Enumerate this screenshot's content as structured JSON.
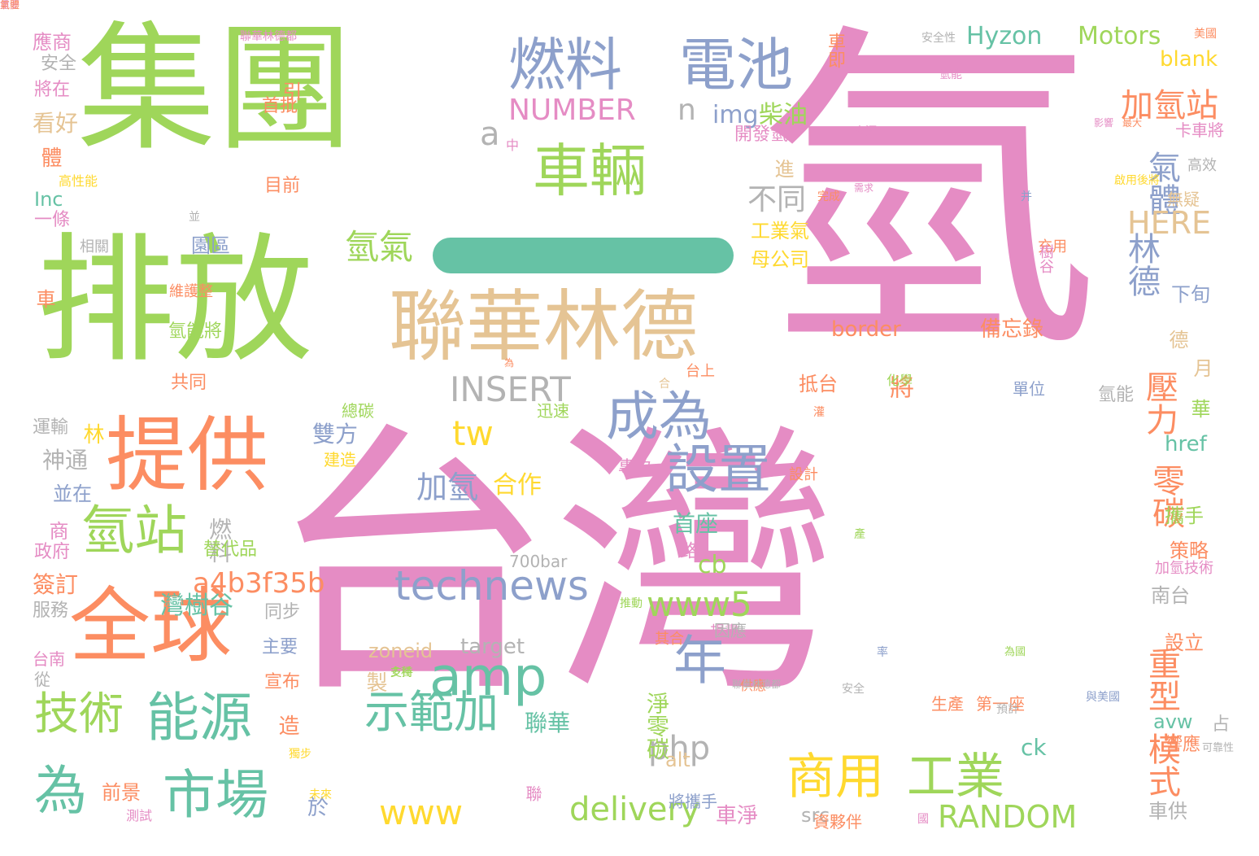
{
  "palette": {
    "green": "#9fd65a",
    "pink": "#e58cc4",
    "orange": "#fc8d62",
    "tan": "#e5c494",
    "blue": "#8da0cb",
    "teal": "#66c2a5",
    "yellow": "#ffd92f",
    "gray": "#b3b3b3"
  },
  "bar_color": "#66c2a5",
  "words": [
    {
      "t": "集團",
      "c": "green"
    },
    {
      "t": "排放",
      "c": "green"
    },
    {
      "t": "台灣",
      "c": "pink"
    },
    {
      "t": "氫",
      "c": "pink"
    },
    {
      "t": "聯華林德",
      "c": "tan"
    },
    {
      "t": "提供",
      "c": "orange"
    },
    {
      "t": "全球",
      "c": "orange"
    },
    {
      "t": "燃料",
      "c": "blue"
    },
    {
      "t": "電池",
      "c": "blue"
    },
    {
      "t": "車輛",
      "c": "green"
    },
    {
      "t": "成為",
      "c": "blue"
    },
    {
      "t": "設置",
      "c": "blue"
    },
    {
      "t": "氫站",
      "c": "green"
    },
    {
      "t": "市場",
      "c": "teal"
    },
    {
      "t": "能源",
      "c": "teal"
    },
    {
      "t": "技術",
      "c": "green"
    },
    {
      "t": "為",
      "c": "teal"
    },
    {
      "t": "amp",
      "c": "teal"
    },
    {
      "t": "年",
      "c": "blue"
    },
    {
      "t": "示範加",
      "c": "teal"
    },
    {
      "t": "商用",
      "c": "yellow"
    },
    {
      "t": "工業",
      "c": "green"
    },
    {
      "t": "technews",
      "c": "blue"
    },
    {
      "t": "a4b3f35b",
      "c": "orange"
    },
    {
      "t": "www5",
      "c": "green"
    },
    {
      "t": "www",
      "c": "yellow"
    },
    {
      "t": "delivery",
      "c": "green"
    },
    {
      "t": "RANDOM",
      "c": "green"
    },
    {
      "t": "INSERT",
      "c": "gray"
    },
    {
      "t": "NUMBER",
      "c": "pink"
    },
    {
      "t": "tw",
      "c": "yellow"
    },
    {
      "t": "php",
      "c": "gray"
    },
    {
      "t": "a",
      "c": "gray"
    },
    {
      "t": "n",
      "c": "gray"
    },
    {
      "t": "img",
      "c": "blue"
    },
    {
      "t": "柴油",
      "c": "green"
    },
    {
      "t": "加氫站",
      "c": "orange"
    },
    {
      "t": "氣體",
      "c": "blue"
    },
    {
      "t": "不同",
      "c": "gray"
    },
    {
      "t": "HERE",
      "c": "tan"
    },
    {
      "t": "林德",
      "c": "blue"
    },
    {
      "t": "氫氣",
      "c": "green"
    },
    {
      "t": "加氫",
      "c": "blue"
    },
    {
      "t": "合作",
      "c": "yellow"
    },
    {
      "t": "壓力",
      "c": "orange"
    },
    {
      "t": "零碳",
      "c": "orange"
    },
    {
      "t": "重型",
      "c": "orange"
    },
    {
      "t": "模式",
      "c": "orange"
    },
    {
      "t": "Hyzon",
      "c": "teal"
    },
    {
      "t": "Motors",
      "c": "green"
    },
    {
      "t": "blank",
      "c": "yellow"
    },
    {
      "t": "border",
      "c": "orange"
    },
    {
      "t": "備忘錄",
      "c": "orange"
    },
    {
      "t": "zoneid",
      "c": "tan"
    },
    {
      "t": "target",
      "c": "gray"
    },
    {
      "t": "href",
      "c": "teal"
    },
    {
      "t": "avw",
      "c": "teal"
    },
    {
      "t": "ck",
      "c": "teal"
    },
    {
      "t": "cb",
      "c": "green"
    },
    {
      "t": "src",
      "c": "gray"
    },
    {
      "t": "alt",
      "c": "tan"
    },
    {
      "t": "Inc",
      "c": "teal"
    },
    {
      "t": "700bar",
      "c": "gray"
    },
    {
      "t": "聯華",
      "c": "teal"
    },
    {
      "t": "淨零碳",
      "c": "green"
    },
    {
      "t": "首座",
      "c": "teal"
    },
    {
      "t": "雙方",
      "c": "blue"
    },
    {
      "t": "燃料",
      "c": "gray"
    },
    {
      "t": "灣樹谷",
      "c": "teal"
    },
    {
      "t": "簽訂",
      "c": "orange"
    },
    {
      "t": "看好",
      "c": "tan"
    },
    {
      "t": "應商",
      "c": "pink"
    },
    {
      "t": "安全",
      "c": "gray"
    },
    {
      "t": "將在",
      "c": "pink"
    },
    {
      "t": "體",
      "c": "orange"
    },
    {
      "t": "一條",
      "c": "pink"
    },
    {
      "t": "相關",
      "c": "gray"
    },
    {
      "t": "車",
      "c": "orange"
    },
    {
      "t": "運輸",
      "c": "gray"
    },
    {
      "t": "林",
      "c": "yellow"
    },
    {
      "t": "神通",
      "c": "gray"
    },
    {
      "t": "並在",
      "c": "blue"
    },
    {
      "t": "商",
      "c": "pink"
    },
    {
      "t": "政府",
      "c": "pink"
    },
    {
      "t": "服務",
      "c": "gray"
    },
    {
      "t": "台南",
      "c": "pink"
    },
    {
      "t": "從",
      "c": "gray"
    },
    {
      "t": "前景",
      "c": "orange"
    },
    {
      "t": "於",
      "c": "blue"
    },
    {
      "t": "引",
      "c": "orange"
    },
    {
      "t": "首批",
      "c": "orange"
    },
    {
      "t": "目前",
      "c": "orange"
    },
    {
      "t": "園區",
      "c": "blue"
    },
    {
      "t": "氫能將",
      "c": "green"
    },
    {
      "t": "共同",
      "c": "orange"
    },
    {
      "t": "替代品",
      "c": "green"
    },
    {
      "t": "同步",
      "c": "gray"
    },
    {
      "t": "主要",
      "c": "blue"
    },
    {
      "t": "宣布",
      "c": "orange"
    },
    {
      "t": "造",
      "c": "orange"
    },
    {
      "t": "製",
      "c": "tan"
    },
    {
      "t": "路",
      "c": "pink"
    },
    {
      "t": "將",
      "c": "orange"
    },
    {
      "t": "進",
      "c": "tan"
    },
    {
      "t": "抵台",
      "c": "orange"
    },
    {
      "t": "工業氣",
      "c": "yellow"
    },
    {
      "t": "母公司",
      "c": "yellow"
    },
    {
      "t": "下旬",
      "c": "blue"
    },
    {
      "t": "月",
      "c": "tan"
    },
    {
      "t": "華",
      "c": "green"
    },
    {
      "t": "德",
      "c": "tan"
    },
    {
      "t": "氫能",
      "c": "gray"
    },
    {
      "t": "攜手",
      "c": "green"
    },
    {
      "t": "策略",
      "c": "orange"
    },
    {
      "t": "南台",
      "c": "gray"
    },
    {
      "t": "設立",
      "c": "orange"
    },
    {
      "t": "響應",
      "c": "orange"
    },
    {
      "t": "車供",
      "c": "gray"
    },
    {
      "t": "占",
      "c": "gray"
    },
    {
      "t": "車淨",
      "c": "pink"
    },
    {
      "t": "資夥伴",
      "c": "orange"
    },
    {
      "t": "車即",
      "c": "orange"
    },
    {
      "t": "開發氫",
      "c": "pink"
    },
    {
      "t": "卡車將",
      "c": "pink"
    },
    {
      "t": "高效",
      "c": "gray"
    },
    {
      "t": "無疑",
      "c": "tan"
    },
    {
      "t": "充用",
      "c": "orange"
    },
    {
      "t": "樹谷",
      "c": "pink"
    },
    {
      "t": "專為",
      "c": "pink"
    },
    {
      "t": "台上",
      "c": "orange"
    },
    {
      "t": "規畫",
      "c": "pink"
    },
    {
      "t": "其合",
      "c": "orange"
    },
    {
      "t": "因應",
      "c": "gray"
    },
    {
      "t": "生產",
      "c": "orange"
    },
    {
      "t": "第一座",
      "c": "orange"
    },
    {
      "t": "將攜手",
      "c": "blue"
    },
    {
      "t": "迅速",
      "c": "green"
    },
    {
      "t": "總碳",
      "c": "green"
    },
    {
      "t": "建造",
      "c": "yellow"
    },
    {
      "t": "單位",
      "c": "blue"
    },
    {
      "t": "加氫技術",
      "c": "pink"
    },
    {
      "t": "設計",
      "c": "orange"
    },
    {
      "t": "高性能",
      "c": "yellow"
    },
    {
      "t": "維護整",
      "c": "orange"
    },
    {
      "t": "聯",
      "c": "pink"
    },
    {
      "t": "安全性",
      "c": "gray"
    },
    {
      "t": "聯華林德都",
      "c": "pink"
    },
    {
      "t": "啟用後將",
      "c": "yellow"
    },
    {
      "t": "可靠性",
      "c": "gray"
    },
    {
      "t": "與美國",
      "c": "blue"
    },
    {
      "t": "並",
      "c": "gray"
    },
    {
      "t": "中",
      "c": "pink"
    },
    {
      "t": "安全",
      "c": "gray"
    },
    {
      "t": "并",
      "c": "blue"
    },
    {
      "t": "供應",
      "c": "orange"
    },
    {
      "t": "預計",
      "c": "gray"
    },
    {
      "t": "支持",
      "c": "green"
    },
    {
      "t": "多種",
      "c": "green"
    },
    {
      "t": "為國",
      "c": "green"
    },
    {
      "t": "美國",
      "c": "orange"
    },
    {
      "t": "最大",
      "c": "orange"
    },
    {
      "t": "聯華林德都",
      "c": "gray"
    },
    {
      "t": "來源",
      "c": "pink"
    },
    {
      "t": "國",
      "c": "pink"
    },
    {
      "t": "為",
      "c": "orange"
    },
    {
      "t": "合",
      "c": "tan"
    },
    {
      "t": "產",
      "c": "green"
    },
    {
      "t": "灌",
      "c": "orange"
    },
    {
      "t": "未來",
      "c": "yellow"
    },
    {
      "t": "獨步",
      "c": "yellow"
    },
    {
      "t": "測試",
      "c": "pink"
    },
    {
      "t": "氫能",
      "c": "pink"
    },
    {
      "t": "化學",
      "c": "green"
    },
    {
      "t": "需求",
      "c": "pink"
    },
    {
      "t": "推動",
      "c": "green"
    },
    {
      "t": "率",
      "c": "blue"
    },
    {
      "t": "完成",
      "c": "orange"
    },
    {
      "t": "影響",
      "c": "pink"
    },
    {
      "t": "重要",
      "c": "pink"
    },
    {
      "t": "氣體",
      "c": "orange"
    }
  ]
}
